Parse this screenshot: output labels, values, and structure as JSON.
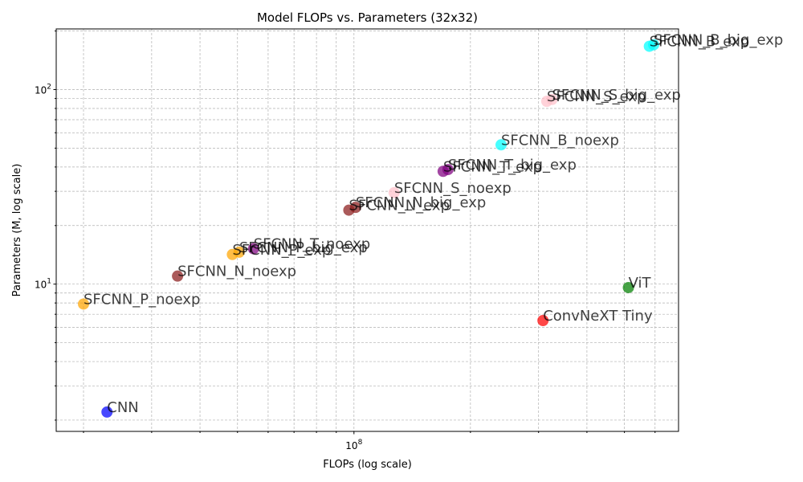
{
  "chart_data": {
    "type": "scatter",
    "title": "Model FLOPs vs. Parameters (32x32)",
    "xlabel": "FLOPs (log scale)",
    "ylabel": "Parameters (M, log scale)",
    "xscale": "log",
    "yscale": "log",
    "xlim": [
      17000000,
      690000000
    ],
    "ylim": [
      1.75,
      205
    ],
    "grid": true,
    "x_major_ticks": [
      {
        "value": 100000000,
        "label": "10^8"
      }
    ],
    "y_major_ticks": [
      {
        "value": 10,
        "label": "10^1"
      },
      {
        "value": 100,
        "label": "10^2"
      }
    ],
    "points": [
      {
        "label": "CNN",
        "x": 23000000,
        "y": 2.2,
        "color": "#0000ff"
      },
      {
        "label": "SFCNN_P_noexp",
        "x": 20000000,
        "y": 7.9,
        "color": "#ffa500"
      },
      {
        "label": "SFCNN_N_noexp",
        "x": 35000000,
        "y": 11.0,
        "color": "#8b1a1a"
      },
      {
        "label": "SFCNN_P_exp",
        "x": 48500000,
        "y": 14.2,
        "color": "#ffa500"
      },
      {
        "label": "SFCNN_P_big_exp",
        "x": 50500000,
        "y": 14.6,
        "color": "#ffa500"
      },
      {
        "label": "SFCNN_T_noexp",
        "x": 55000000,
        "y": 15.2,
        "color": "#800080"
      },
      {
        "label": "SFCNN_N_exp",
        "x": 97000000,
        "y": 24.0,
        "color": "#8b1a1a"
      },
      {
        "label": "SFCNN_N_big_exp",
        "x": 101000000,
        "y": 24.8,
        "color": "#8b1a1a"
      },
      {
        "label": "SFCNN_S_noexp",
        "x": 127000000,
        "y": 29.5,
        "color": "#ffc0cb"
      },
      {
        "label": "SFCNN_T_exp",
        "x": 170000000,
        "y": 38.0,
        "color": "#800080"
      },
      {
        "label": "SFCNN_T_big_exp",
        "x": 175000000,
        "y": 38.8,
        "color": "#800080"
      },
      {
        "label": "SFCNN_B_noexp",
        "x": 240000000,
        "y": 52.0,
        "color": "#00ffff"
      },
      {
        "label": "SFCNN_S_exp",
        "x": 315000000,
        "y": 87.0,
        "color": "#ffc0cb"
      },
      {
        "label": "SFCNN_S_big_exp",
        "x": 325000000,
        "y": 89.0,
        "color": "#ffc0cb"
      },
      {
        "label": "ConvNeXT Tiny",
        "x": 308000000,
        "y": 6.5,
        "color": "#ff0000"
      },
      {
        "label": "ViT",
        "x": 512000000,
        "y": 9.6,
        "color": "#008000"
      },
      {
        "label": "SFCNN_B_exp",
        "x": 580000000,
        "y": 167.0,
        "color": "#00ffff"
      },
      {
        "label": "SFCNN_B_big_exp",
        "x": 595000000,
        "y": 170.0,
        "color": "#00ffff"
      }
    ]
  }
}
